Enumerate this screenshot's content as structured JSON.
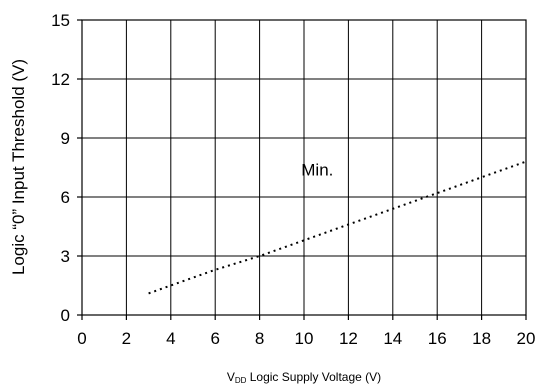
{
  "chart_data": {
    "type": "line",
    "title": "",
    "xlabel": {
      "prefix": "V",
      "subscript": "DD",
      "suffix": " Logic Supply Voltage (V)"
    },
    "ylabel": "Logic “0” Input Threshold (V)",
    "xlim": [
      0,
      20
    ],
    "ylim": [
      0,
      15
    ],
    "x_ticks": [
      0,
      2,
      4,
      6,
      8,
      10,
      12,
      14,
      16,
      18,
      20
    ],
    "y_ticks": [
      0,
      3,
      6,
      9,
      12,
      15
    ],
    "grid": true,
    "series": [
      {
        "name": "Min.",
        "line_style": "dotted",
        "x": [
          3,
          4,
          6,
          8,
          10,
          12,
          14,
          16,
          18,
          20
        ],
        "y": [
          1.1,
          1.5,
          2.3,
          3.0,
          3.8,
          4.6,
          5.4,
          6.2,
          7.0,
          7.8
        ]
      }
    ],
    "annotations": [
      {
        "text": "Min.",
        "x": 10.6,
        "y": 7.1
      }
    ],
    "colors": {
      "line": "#000000",
      "grid": "#000000",
      "background": "#ffffff"
    }
  }
}
